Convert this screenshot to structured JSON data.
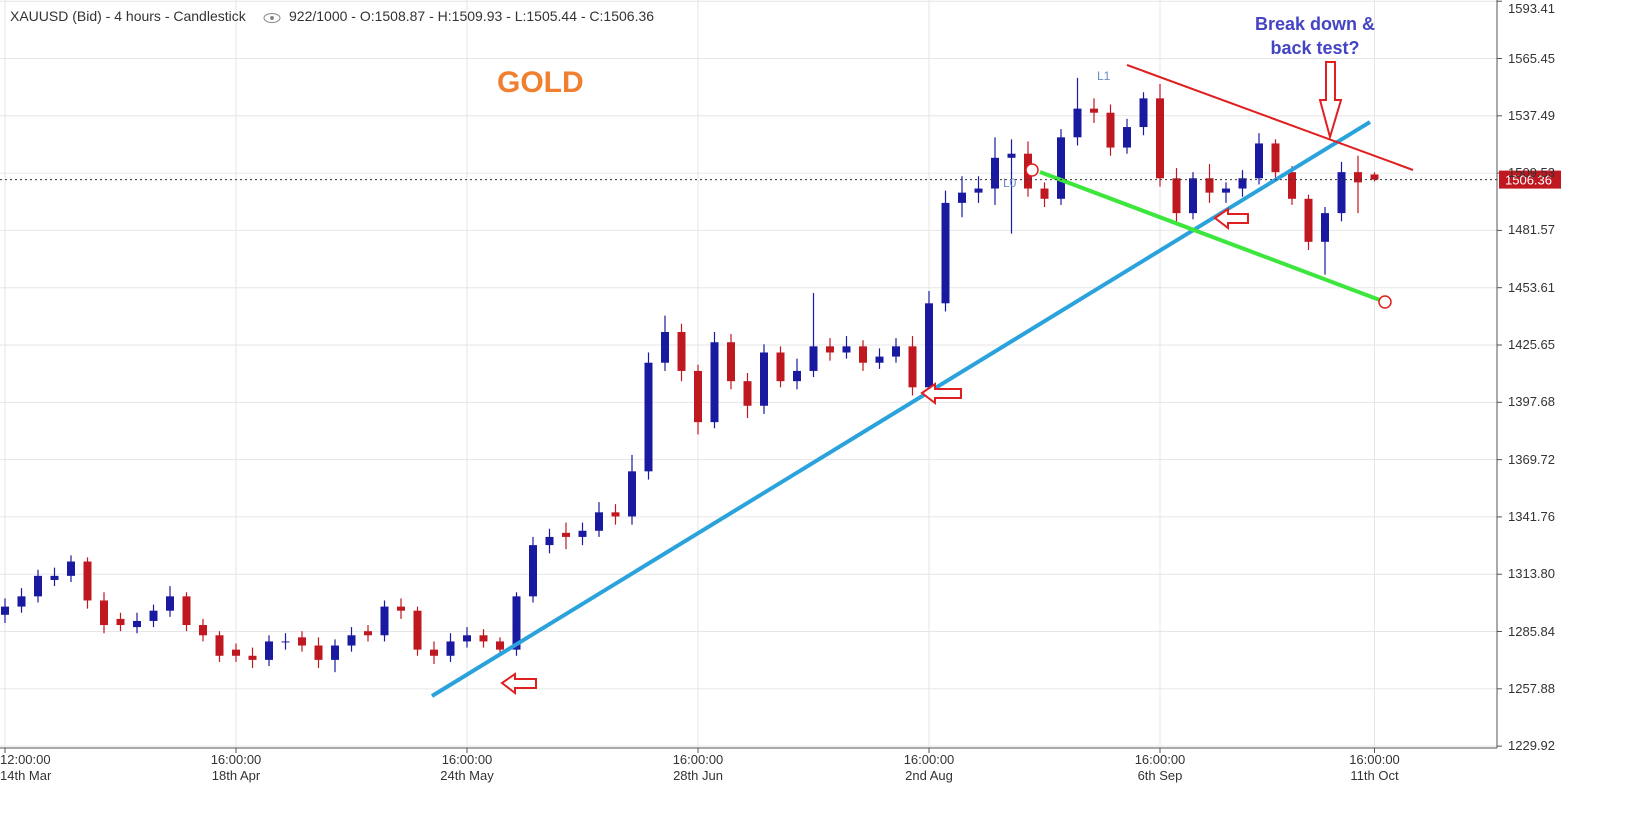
{
  "chart_data": {
    "type": "candlestick",
    "title": "XAUUSD (Bid) - 4 hours - Candlestick",
    "info": "922/1000 - O:1508.87 - H:1509.93 - L:1505.44 - C:1506.36",
    "categories": [
      "12:00:00\n14th Mar",
      null,
      null,
      null,
      null,
      null,
      null,
      null,
      null,
      null,
      null,
      null,
      null,
      null,
      "16:00:00\n18th Apr",
      null,
      null,
      null,
      null,
      null,
      null,
      null,
      null,
      null,
      null,
      null,
      null,
      null,
      "16:00:00\n24th May",
      null,
      null,
      null,
      null,
      null,
      null,
      null,
      null,
      null,
      null,
      null,
      null,
      null,
      "16:00:00\n28th Jun",
      null,
      null,
      null,
      null,
      null,
      null,
      null,
      null,
      null,
      null,
      null,
      null,
      null,
      "16:00:00\n2nd Aug",
      null,
      null,
      null,
      null,
      null,
      null,
      null,
      null,
      null,
      null,
      null,
      null,
      null,
      "16:00:00\n6th Sep",
      null,
      null,
      null,
      null,
      null,
      null,
      null,
      null,
      null,
      null,
      null,
      null,
      "16:00:00\n11th Oct"
    ],
    "open": [
      1294,
      1298,
      1303,
      1311,
      1313,
      1320,
      1301,
      1292,
      1288,
      1291,
      1296,
      1303,
      1289,
      1284,
      1277,
      1274,
      1272,
      1281,
      1283,
      1279,
      1272,
      1279,
      1286,
      1284,
      1298,
      1296,
      1277,
      1274,
      1281,
      1284,
      1281,
      1277,
      1303,
      1328,
      1334,
      1332,
      1335,
      1344,
      1342,
      1364,
      1417,
      1432,
      1413,
      1388,
      1427,
      1408,
      1396,
      1422,
      1408,
      1413,
      1425,
      1422,
      1425,
      1417,
      1420,
      1425,
      1405,
      1446,
      1495,
      1500,
      1502,
      1517,
      1519,
      1502,
      1497,
      1527,
      1541,
      1539,
      1522,
      1532,
      1546,
      1507,
      1490,
      1507,
      1500,
      1502,
      1507,
      1524,
      1510,
      1497,
      1476,
      1490,
      1510,
      1508.87
    ],
    "high": [
      1302,
      1307,
      1316,
      1317,
      1323,
      1322,
      1305,
      1295,
      1295,
      1299,
      1308,
      1305,
      1292,
      1286,
      1280,
      1278,
      1284,
      1285,
      1286,
      1283,
      1282,
      1288,
      1289,
      1301,
      1302,
      1298,
      1281,
      1285,
      1288,
      1287,
      1283,
      1305,
      1332,
      1336,
      1339,
      1339,
      1349,
      1348,
      1372,
      1422,
      1440,
      1436,
      1416,
      1432,
      1431,
      1412,
      1426,
      1425,
      1419,
      1451,
      1429,
      1430,
      1428,
      1424,
      1429,
      1430,
      1452,
      1501,
      1508,
      1508,
      1527,
      1526,
      1525,
      1505,
      1531,
      1556,
      1546,
      1543,
      1536,
      1549,
      1553,
      1512,
      1510,
      1514,
      1505,
      1511,
      1529,
      1526,
      1513,
      1499,
      1493,
      1515,
      1518,
      1509.93
    ],
    "low": [
      1290,
      1295,
      1300,
      1308,
      1310,
      1297,
      1285,
      1286,
      1285,
      1288,
      1293,
      1286,
      1281,
      1271,
      1271,
      1268,
      1269,
      1277,
      1276,
      1268,
      1266,
      1276,
      1281,
      1281,
      1292,
      1274,
      1270,
      1271,
      1278,
      1278,
      1274,
      1274,
      1300,
      1324,
      1326,
      1328,
      1332,
      1338,
      1338,
      1360,
      1413,
      1408,
      1382,
      1385,
      1404,
      1390,
      1392,
      1405,
      1404,
      1410,
      1418,
      1419,
      1413,
      1414,
      1417,
      1401,
      1402,
      1442,
      1488,
      1495,
      1494,
      1480,
      1498,
      1493,
      1494,
      1523,
      1534,
      1518,
      1519,
      1528,
      1503,
      1485,
      1487,
      1495,
      1495,
      1498,
      1504,
      1506,
      1494,
      1472,
      1460,
      1486,
      1490,
      1505.44
    ],
    "close": [
      1298,
      1303,
      1313,
      1313,
      1320,
      1301,
      1289,
      1289,
      1291,
      1296,
      1303,
      1289,
      1284,
      1274,
      1274,
      1272,
      1281,
      1281,
      1279,
      1272,
      1279,
      1284,
      1284,
      1298,
      1296,
      1277,
      1274,
      1281,
      1284,
      1281,
      1277,
      1303,
      1328,
      1332,
      1332,
      1335,
      1344,
      1342,
      1364,
      1417,
      1432,
      1413,
      1388,
      1427,
      1408,
      1396,
      1422,
      1408,
      1413,
      1425,
      1422,
      1425,
      1417,
      1420,
      1425,
      1405,
      1446,
      1495,
      1500,
      1502,
      1517,
      1519,
      1502,
      1497,
      1527,
      1541,
      1539,
      1522,
      1532,
      1546,
      1507,
      1490,
      1507,
      1500,
      1502,
      1507,
      1524,
      1510,
      1497,
      1476,
      1490,
      1510,
      1505,
      1506.36
    ],
    "up_color": "#1a1aa0",
    "down_color": "#c01820",
    "ylim": [
      1229,
      1594
    ],
    "yticks": [
      1593.41,
      1565.45,
      1537.49,
      1509.53,
      1481.57,
      1453.61,
      1425.65,
      1397.68,
      1369.72,
      1341.76,
      {
        "value": 1313.8,
        "label": "1313.80"
      },
      1285.84,
      1257.88,
      1229.92
    ],
    "grid": true,
    "last_price": 1506.36,
    "annotations": {
      "gold": "GOLD",
      "question": "Break down &\nback test?",
      "l1": "L1",
      "l0": "L0"
    }
  }
}
